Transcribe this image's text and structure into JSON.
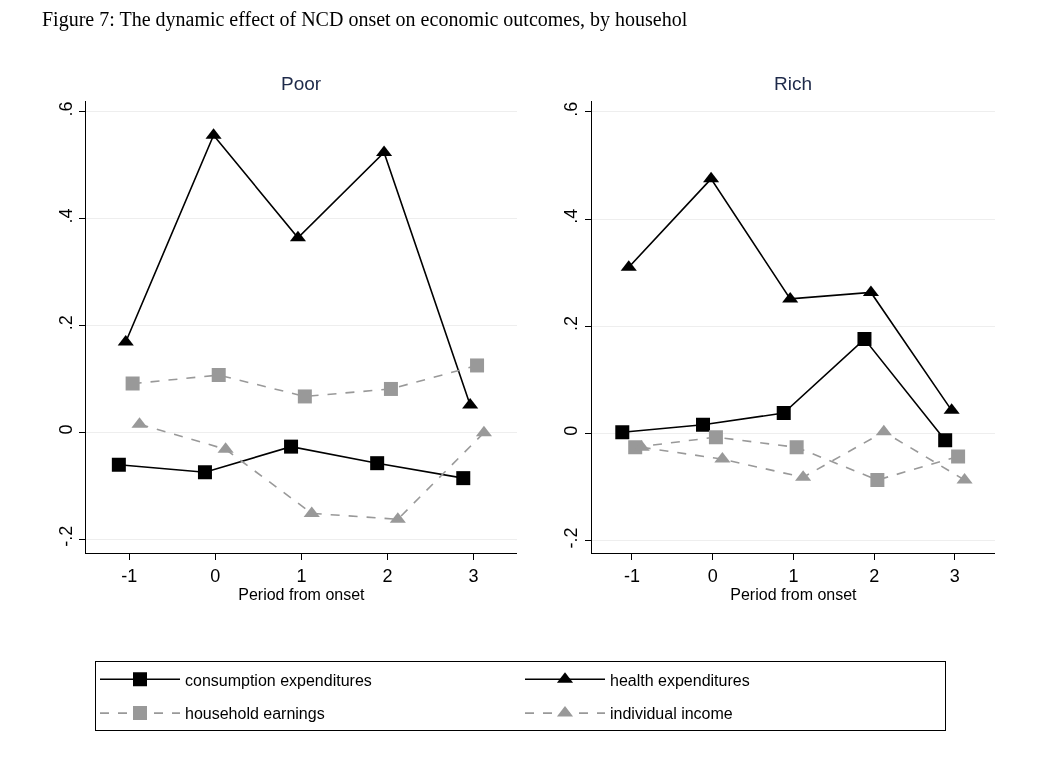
{
  "chart_data": [
    {
      "type": "line",
      "title": "Poor",
      "xlabel": "Period from onset",
      "xlim": [
        -1.5,
        3.5
      ],
      "xticks": [
        -1,
        0,
        1,
        2,
        3
      ],
      "ylim": [
        -0.227,
        0.62
      ],
      "yticks": [
        {
          "value": -0.2,
          "label": "-.2"
        },
        {
          "value": 0,
          "label": "0"
        },
        {
          "value": 0.2,
          "label": ".2"
        },
        {
          "value": 0.4,
          "label": ".4"
        },
        {
          "value": 0.6,
          "label": ".6"
        }
      ],
      "grid": "y",
      "legend": "bottom",
      "annotations": [
        "Figure 7: The dynamic effect of NCD onset on economic outcomes, by househol"
      ],
      "series": [
        {
          "name": "consumption expenditures",
          "color": "#000000",
          "marker": "square",
          "line_style": "solid",
          "x": [
            -1.12,
            -0.12,
            0.88,
            1.88,
            2.88
          ],
          "values": [
            -0.061,
            -0.075,
            -0.027,
            -0.058,
            -0.086
          ]
        },
        {
          "name": "health expenditures",
          "color": "#000000",
          "marker": "triangle",
          "line_style": "solid",
          "x": [
            -1.04,
            -0.02,
            0.96,
            1.96,
            2.96
          ],
          "values": [
            0.169,
            0.556,
            0.364,
            0.524,
            0.051
          ]
        },
        {
          "name": "household earnings",
          "color": "#999999",
          "marker": "square",
          "line_style": "dashed",
          "x": [
            -0.96,
            0.04,
            1.04,
            2.04,
            3.04
          ],
          "values": [
            0.091,
            0.107,
            0.067,
            0.081,
            0.125
          ]
        },
        {
          "name": "individual income",
          "color": "#999999",
          "marker": "triangle",
          "line_style": "dashed",
          "x": [
            -0.88,
            0.12,
            1.12,
            2.12,
            3.12
          ],
          "values": [
            0.015,
            -0.032,
            -0.152,
            -0.163,
            -0.001
          ]
        }
      ]
    },
    {
      "type": "line",
      "title": "Rich",
      "xlabel": "Period from onset",
      "xlim": [
        -1.5,
        3.5
      ],
      "xticks": [
        -1,
        0,
        1,
        2,
        3
      ],
      "ylim": [
        -0.224,
        0.62
      ],
      "yticks": [
        {
          "value": -0.2,
          "label": "-.2"
        },
        {
          "value": 0,
          "label": "0"
        },
        {
          "value": 0.2,
          "label": ".2"
        },
        {
          "value": 0.4,
          "label": ".4"
        },
        {
          "value": 0.6,
          "label": ".6"
        }
      ],
      "grid": "y",
      "series": [
        {
          "color": "#000000",
          "marker": "square",
          "line_style": "solid",
          "x": [
            -1.12,
            -0.12,
            0.88,
            1.88,
            2.88
          ],
          "values": [
            0.002,
            0.016,
            0.038,
            0.176,
            -0.013
          ]
        },
        {
          "color": "#000000",
          "marker": "triangle",
          "line_style": "solid",
          "x": [
            -1.04,
            -0.02,
            0.96,
            1.96,
            2.96
          ],
          "values": [
            0.31,
            0.475,
            0.251,
            0.263,
            0.043
          ]
        },
        {
          "color": "#999999",
          "marker": "square",
          "line_style": "dashed",
          "x": [
            -0.96,
            0.04,
            1.04,
            2.04,
            3.04
          ],
          "values": [
            -0.026,
            -0.007,
            -0.026,
            -0.087,
            -0.043
          ]
        },
        {
          "color": "#999999",
          "marker": "triangle",
          "line_style": "dashed",
          "x": [
            -0.88,
            0.12,
            1.12,
            2.12,
            3.12
          ],
          "values": [
            -0.026,
            -0.048,
            -0.082,
            0.003,
            -0.087
          ]
        }
      ]
    }
  ]
}
